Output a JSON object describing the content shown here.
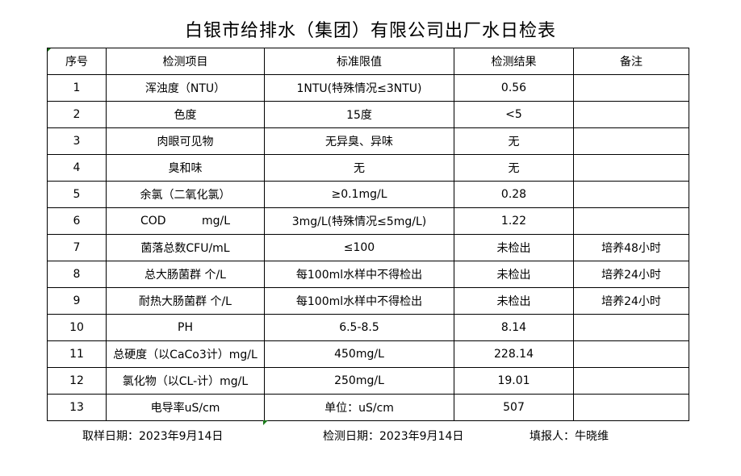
{
  "title": "白银市给排水（集团）有限公司出厂水日检表",
  "headers": [
    "序号",
    "检测项目",
    "标准限值",
    "检测结果",
    "备注"
  ],
  "rows": [
    [
      "1",
      "浑浊度（NTU）",
      "1NTU(特殊情况≤3NTU)",
      "0.56",
      ""
    ],
    [
      "2",
      "色度",
      "15度",
      "<5",
      ""
    ],
    [
      "3",
      "肉眼可见物",
      "无异臭、异味",
      "无",
      ""
    ],
    [
      "4",
      "臭和味",
      "无",
      "无",
      ""
    ],
    [
      "5",
      "余氯（二氧化氯）",
      "≥0.1mg/L",
      "0.28",
      ""
    ],
    [
      "6",
      "COD          mg/L",
      "3mg/L(特殊情况≤5mg/L)",
      "1.22",
      ""
    ],
    [
      "7",
      "菌落总数CFU/mL",
      "≤100",
      "未检出",
      "培养48小时"
    ],
    [
      "8",
      "总大肠菌群 个/L",
      "每100ml水样中不得检出",
      "未检出",
      "培养24小时"
    ],
    [
      "9",
      "耐热大肠菌群 个/L",
      "每100ml水样中不得检出",
      "未检出",
      "培养24小时"
    ],
    [
      "10",
      "PH",
      "6.5-8.5",
      "8.14",
      ""
    ],
    [
      "11",
      "总硬度（以CaCo3计）mg/L",
      "450mg/L",
      "228.14",
      ""
    ],
    [
      "12",
      "氯化物（以CL-计）mg/L",
      "250mg/L",
      "19.01",
      ""
    ],
    [
      "13",
      "电导率uS/cm",
      "单位：uS/cm",
      "507",
      ""
    ]
  ],
  "footer": {
    "sample_date": "取样日期：2023年9月14日",
    "test_date": "检测日期：2023年9月14日",
    "reporter": "填报人：牛晓维"
  }
}
